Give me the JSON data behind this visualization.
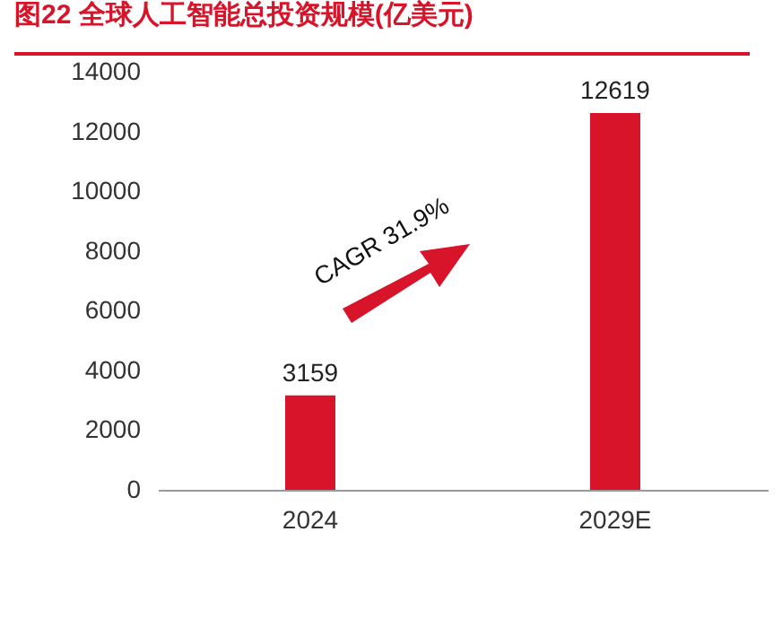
{
  "chart_data": {
    "type": "bar",
    "title": "图22  全球人工智能总投资规模(亿美元)",
    "categories": [
      "2024",
      "2029E"
    ],
    "values": [
      3159,
      12619
    ],
    "color": "#d7142a",
    "ylim": [
      0,
      14000
    ],
    "yticks": [
      0,
      2000,
      4000,
      6000,
      8000,
      10000,
      12000,
      14000
    ],
    "grid": false,
    "data_labels": true,
    "annotations": [
      "CAGR 31.9%"
    ]
  }
}
